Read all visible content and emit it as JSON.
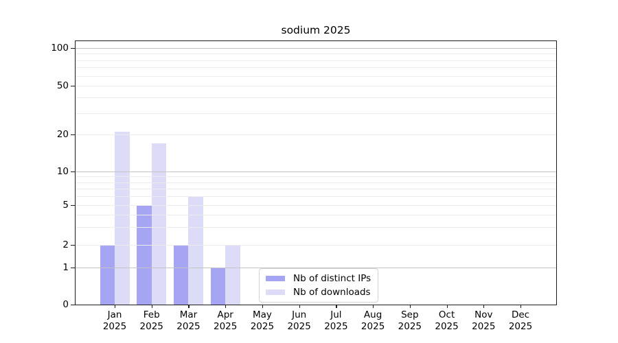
{
  "chart_data": {
    "type": "bar",
    "title": "sodium 2025",
    "categories": [
      "Jan",
      "Feb",
      "Mar",
      "Apr",
      "May",
      "Jun",
      "Jul",
      "Aug",
      "Sep",
      "Oct",
      "Nov",
      "Dec"
    ],
    "year_label": "2025",
    "series": [
      {
        "name": "Nb of distinct IPs",
        "color": "#a5a5f3",
        "values": [
          2,
          5,
          2,
          1,
          0,
          0,
          0,
          0,
          0,
          0,
          0,
          0
        ]
      },
      {
        "name": "Nb of downloads",
        "color": "#dcdcf9",
        "values": [
          21,
          17,
          6,
          2,
          0,
          0,
          0,
          0,
          0,
          0,
          0,
          0
        ]
      }
    ],
    "xlabel": "",
    "ylabel": "",
    "yscale": "symlog",
    "ylim": [
      0,
      100
    ],
    "yticks": [
      0,
      1,
      2,
      5,
      10,
      20,
      50,
      100
    ],
    "major_gridlines": [
      1,
      10,
      100
    ],
    "minor_gridlines": [
      2,
      3,
      4,
      5,
      6,
      7,
      8,
      9,
      20,
      30,
      40,
      50,
      60,
      70,
      80,
      90
    ],
    "grid": true,
    "legend_position": "lower center",
    "colors": {
      "major_grid": "#c3c3c3",
      "minor_grid": "#ececec",
      "spine": "#1a1a1a",
      "text": "#000000",
      "background": "#ffffff"
    }
  }
}
